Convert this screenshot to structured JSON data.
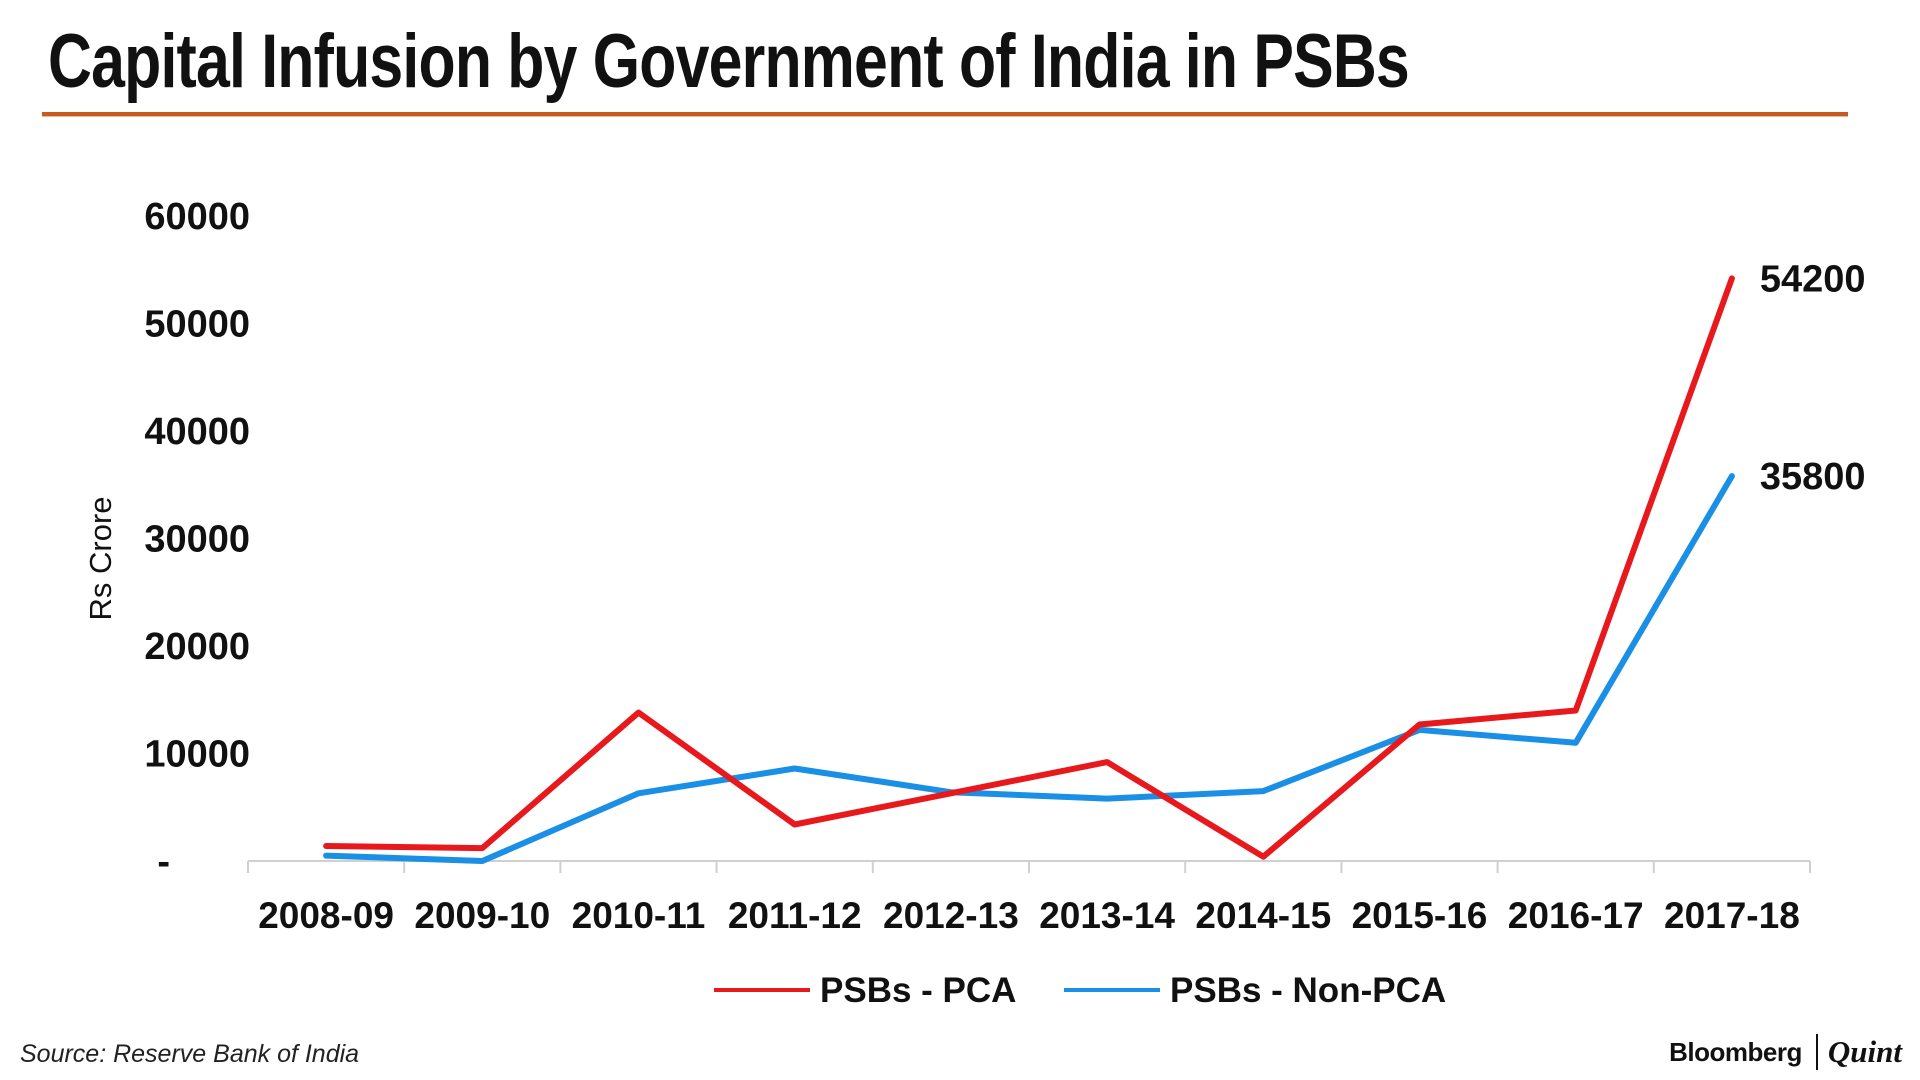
{
  "header": {
    "title": "Capital Infusion by Government of India in PSBs"
  },
  "footer": {
    "source": "Source: Reserve Bank of India",
    "brand_primary": "Bloomberg",
    "brand_secondary": "Quint"
  },
  "colors": {
    "title_rule": "#c75a1e",
    "series_pca": "#e8191c",
    "series_non_pca": "#1a8fe6",
    "axis": "#d0d0d0"
  },
  "chart_data": {
    "type": "line",
    "title": "Capital Infusion by Government of India in PSBs",
    "xlabel": "",
    "ylabel": "Rs Crore",
    "categories": [
      "2008-09",
      "2009-10",
      "2010-11",
      "2011-12",
      "2012-13",
      "2013-14",
      "2014-15",
      "2015-16",
      "2016-17",
      "2017-18"
    ],
    "ylim": [
      0,
      60000
    ],
    "yticks": [
      {
        "value": 0,
        "label": "-"
      },
      {
        "value": 10000,
        "label": "10000"
      },
      {
        "value": 20000,
        "label": "20000"
      },
      {
        "value": 30000,
        "label": "30000"
      },
      {
        "value": 40000,
        "label": "40000"
      },
      {
        "value": 50000,
        "label": "50000"
      },
      {
        "value": 60000,
        "label": "60000"
      }
    ],
    "grid": false,
    "legend_position": "bottom",
    "series": [
      {
        "name": "PSBs - PCA",
        "color": "#e8191c",
        "values": [
          1400,
          1200,
          13800,
          3400,
          6300,
          9200,
          400,
          12700,
          14000,
          54200
        ],
        "end_label": "54200"
      },
      {
        "name": "PSBs - Non-PCA",
        "color": "#1a8fe6",
        "values": [
          500,
          0,
          6300,
          8600,
          6400,
          5800,
          6500,
          12200,
          11000,
          35800
        ],
        "end_label": "35800"
      }
    ]
  }
}
